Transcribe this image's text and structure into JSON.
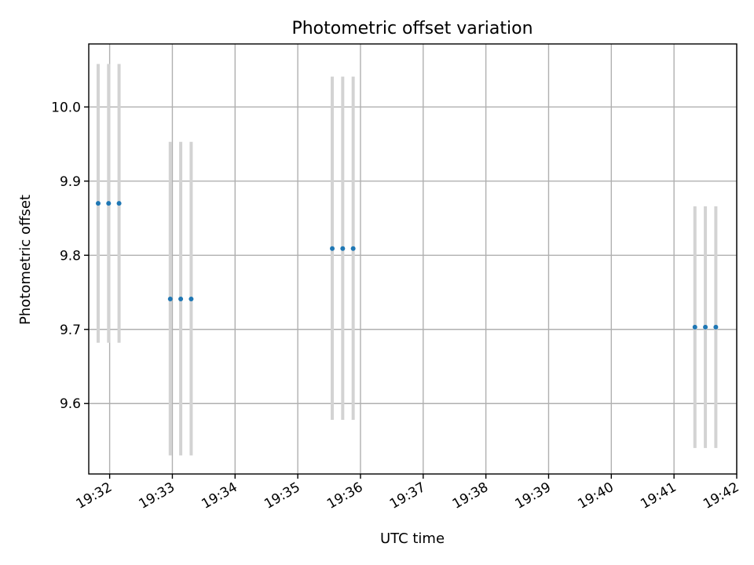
{
  "chart_data": {
    "type": "scatter",
    "title": "Photometric offset variation",
    "xlabel": "UTC time",
    "ylabel": "Photometric offset",
    "xlim": [
      "19:31:40",
      "19:42:00"
    ],
    "ylim": [
      9.505,
      10.085
    ],
    "x_ticks": [
      "19:32",
      "19:33",
      "19:34",
      "19:35",
      "19:36",
      "19:37",
      "19:38",
      "19:39",
      "19:40",
      "19:41",
      "19:42"
    ],
    "y_ticks": [
      "9.6",
      "9.7",
      "9.8",
      "9.9",
      "10.0"
    ],
    "grid": true,
    "colors": {
      "point": "#1f77b4",
      "errorbar": "#d3d3d3",
      "grid": "#b0b0b0"
    },
    "points": [
      {
        "x": "19:31:49",
        "y": 9.87,
        "ylow": 9.682,
        "yhigh": 10.058
      },
      {
        "x": "19:31:59",
        "y": 9.87,
        "ylow": 9.682,
        "yhigh": 10.058
      },
      {
        "x": "19:32:09",
        "y": 9.87,
        "ylow": 9.682,
        "yhigh": 10.058
      },
      {
        "x": "19:32:58",
        "y": 9.741,
        "ylow": 9.53,
        "yhigh": 9.953
      },
      {
        "x": "19:33:08",
        "y": 9.741,
        "ylow": 9.53,
        "yhigh": 9.953
      },
      {
        "x": "19:33:18",
        "y": 9.741,
        "ylow": 9.53,
        "yhigh": 9.953
      },
      {
        "x": "19:35:33",
        "y": 9.809,
        "ylow": 9.578,
        "yhigh": 10.041
      },
      {
        "x": "19:35:43",
        "y": 9.809,
        "ylow": 9.578,
        "yhigh": 10.041
      },
      {
        "x": "19:35:53",
        "y": 9.809,
        "ylow": 9.578,
        "yhigh": 10.041
      },
      {
        "x": "19:41:20",
        "y": 9.703,
        "ylow": 9.54,
        "yhigh": 9.866
      },
      {
        "x": "19:41:30",
        "y": 9.703,
        "ylow": 9.54,
        "yhigh": 9.866
      },
      {
        "x": "19:41:40",
        "y": 9.703,
        "ylow": 9.54,
        "yhigh": 9.866
      }
    ]
  }
}
